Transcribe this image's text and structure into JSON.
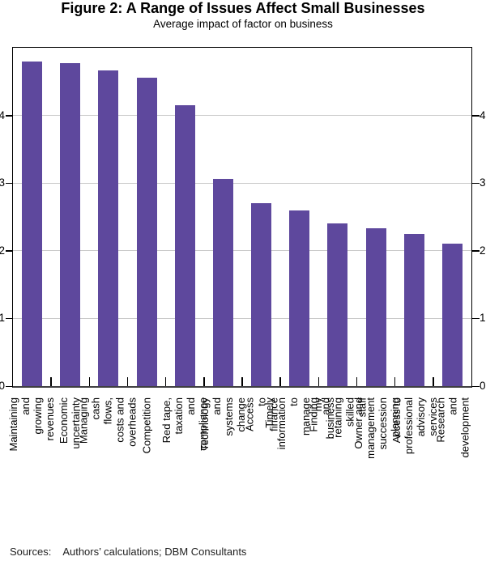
{
  "page": {
    "title": "Figure 2: A Range of Issues Affect Small Businesses",
    "subtitle": "Average impact of factor on business",
    "source_label": "Sources:",
    "source_text": "Authors’ calculations; DBM Consultants"
  },
  "chart_data": {
    "type": "bar",
    "title": "Figure 2: A Range of Issues Affect Small Businesses",
    "subtitle": "Average impact of factor on business",
    "categories": [
      "Maintaining and\ngrowing revenues",
      "Economic uncertainty",
      "Managing cash flows,\ncosts and overheads",
      "Competition",
      "Red tape, taxation\nand compliance",
      "Technology and\nsystems change",
      "Access to finance",
      "Timely information to\nmanage my business",
      "Finding and retaining\nskilled staff",
      "Owner and management\nsuccession planning",
      "Access to professional\nadvisory services",
      "Research and\ndevelopment"
    ],
    "values": [
      4.8,
      4.77,
      4.66,
      4.56,
      4.15,
      3.06,
      2.7,
      2.59,
      2.41,
      2.33,
      2.25,
      2.11
    ],
    "xlabel": "",
    "ylabel": "",
    "ylim": [
      0,
      5
    ],
    "yticks": [
      0,
      1,
      2,
      3,
      4
    ],
    "grid": true,
    "legend": false,
    "y_axis_sides": "both",
    "x_labels_rotated_degrees": 90,
    "bar_color": "#5E489D",
    "gridline_color": "#C9C9C9",
    "sources": "Authors’ calculations; DBM Consultants"
  }
}
